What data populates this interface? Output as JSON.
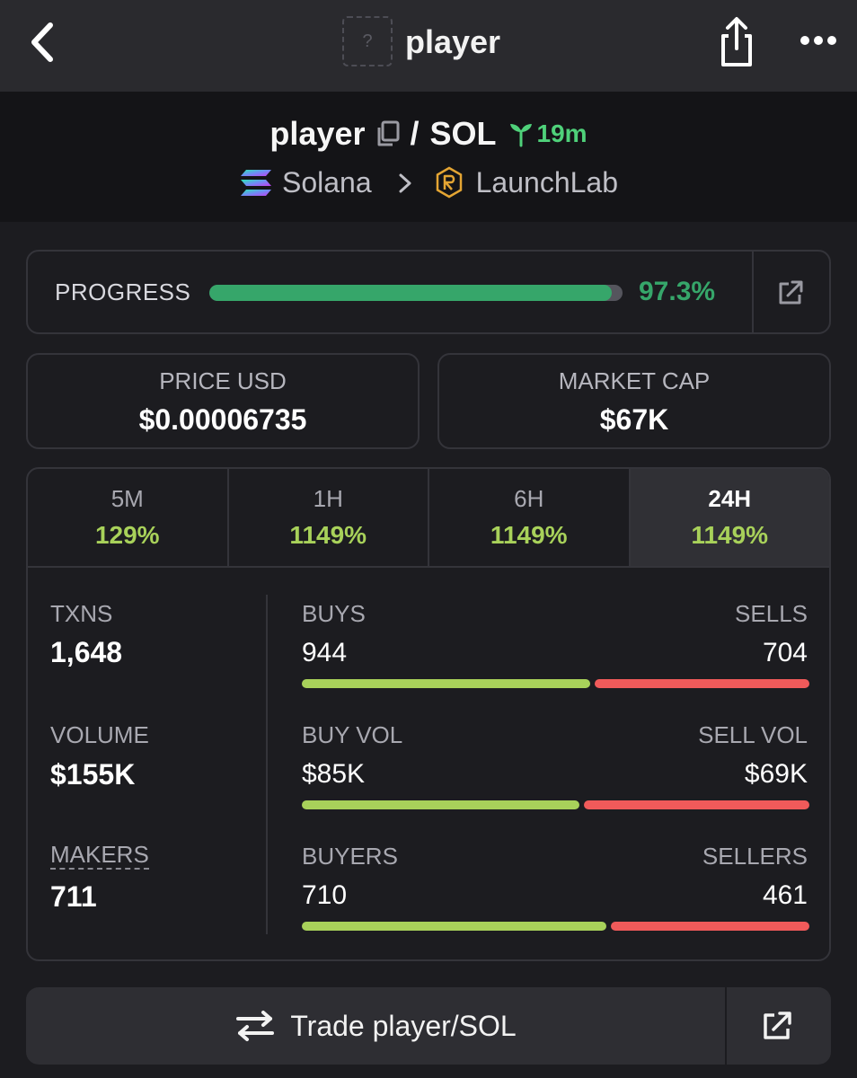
{
  "nav": {
    "title": "player",
    "thumb_placeholder": "?",
    "icons": [
      "back-arrow-icon",
      "share-icon",
      "more-icon"
    ]
  },
  "header": {
    "base": "player",
    "separator": "/",
    "quote": "SOL",
    "age": "19m",
    "chain": "Solana",
    "dex": "LaunchLab"
  },
  "progress": {
    "label": "PROGRESS",
    "value_text": "97.3%",
    "fraction": 0.973
  },
  "price": {
    "label": "PRICE USD",
    "value": "$0.00006735"
  },
  "market_cap": {
    "label": "MARKET CAP",
    "value": "$67K"
  },
  "tabs": [
    {
      "label": "5M",
      "value": "129%"
    },
    {
      "label": "1H",
      "value": "1149%"
    },
    {
      "label": "6H",
      "value": "1149%"
    },
    {
      "label": "24H",
      "value": "1149%",
      "active": true
    }
  ],
  "stats": {
    "txns": {
      "label": "TXNS",
      "value": "1,648"
    },
    "volume": {
      "label": "VOLUME",
      "value": "$155K"
    },
    "makers": {
      "label": "MAKERS",
      "value": "711"
    },
    "buys": {
      "label": "BUYS",
      "value": "944",
      "sell_label": "SELLS",
      "sell_value": "704",
      "buy_ratio": 0.573
    },
    "vol": {
      "label": "BUY VOL",
      "value": "$85K",
      "sell_label": "SELL VOL",
      "sell_value": "$69K",
      "buy_ratio": 0.552
    },
    "buyers": {
      "label": "BUYERS",
      "value": "710",
      "sell_label": "SELLERS",
      "sell_value": "461",
      "buy_ratio": 0.606
    }
  },
  "trade": {
    "label": "Trade player/SOL"
  },
  "colors": {
    "positive": "#a8d15a",
    "negative": "#f05a5a",
    "progress": "#36a66a",
    "age": "#4fd17a"
  }
}
